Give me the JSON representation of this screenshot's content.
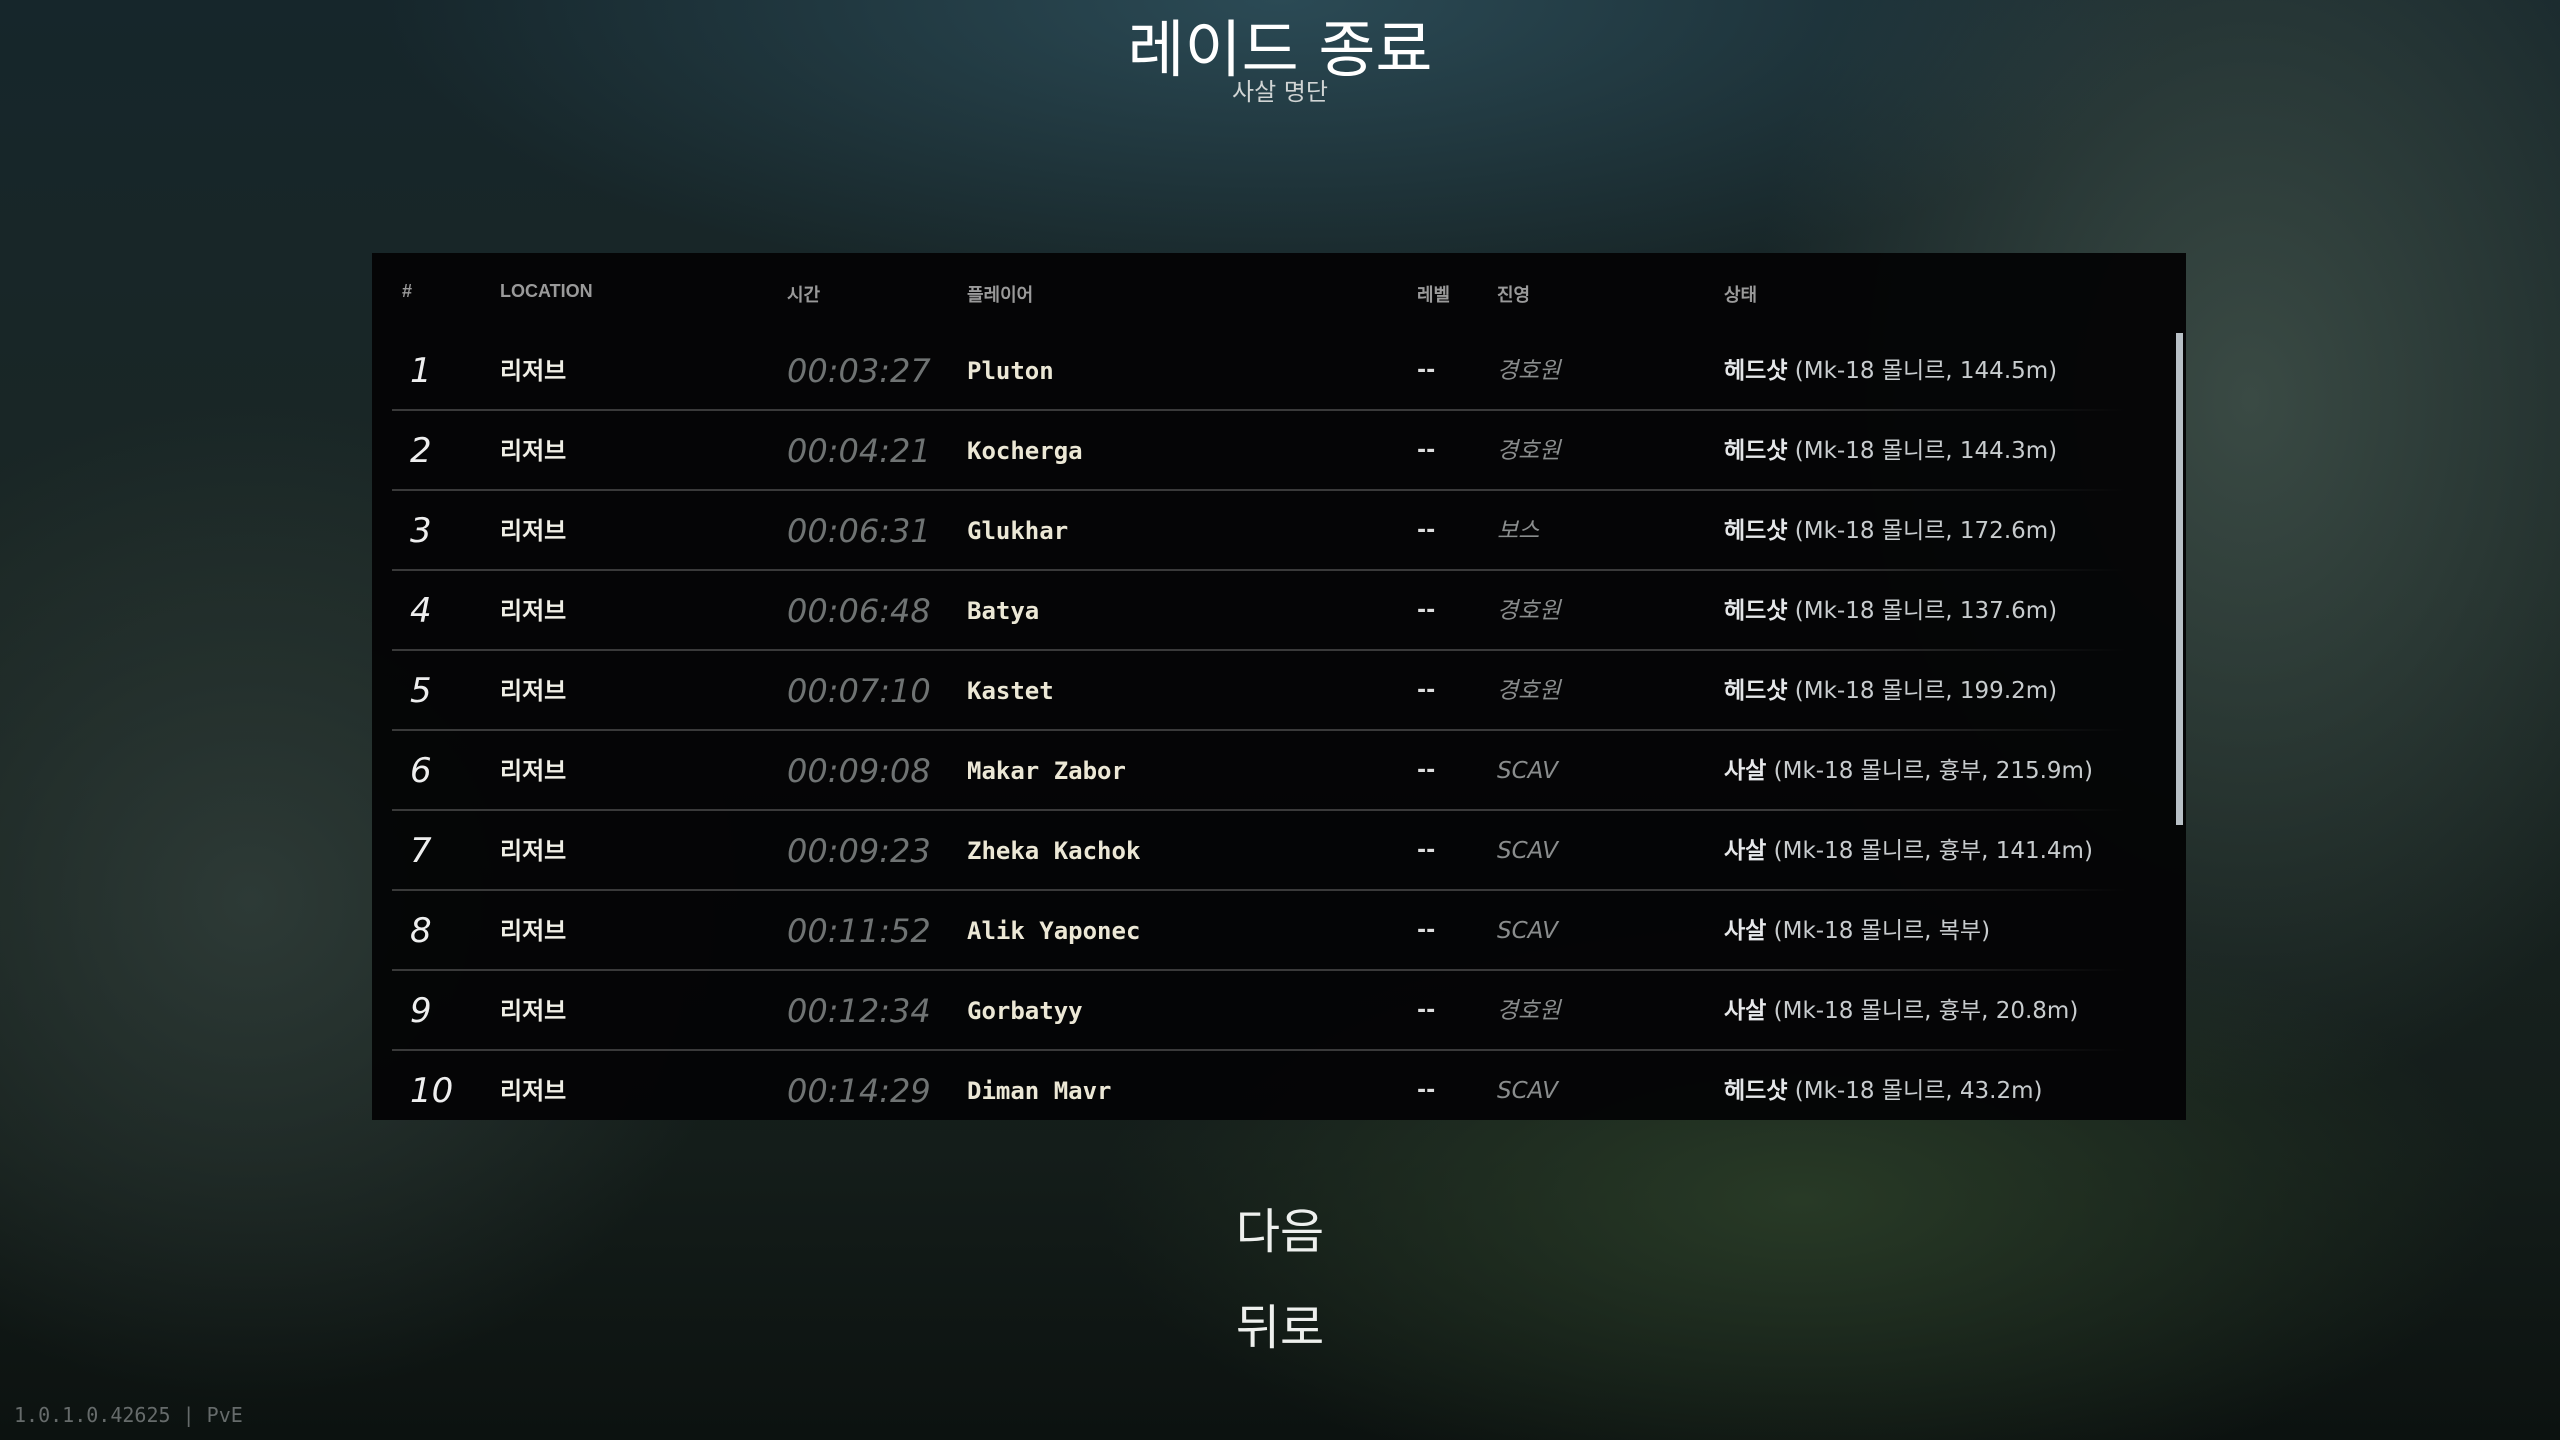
{
  "header": {
    "title": "레이드 종료",
    "subtitle": "사살 명단"
  },
  "table": {
    "columns": [
      "#",
      "LOCATION",
      "시간",
      "플레이어",
      "레벨",
      "진영",
      "상태"
    ],
    "rows": [
      {
        "num": "1",
        "location": "리저브",
        "time": "00:03:27",
        "player": "Pluton",
        "level": "--",
        "faction": "경호원",
        "status_type": "헤드샷",
        "status_detail": "(Mk-18 몰니르, 144.5m)"
      },
      {
        "num": "2",
        "location": "리저브",
        "time": "00:04:21",
        "player": "Kocherga",
        "level": "--",
        "faction": "경호원",
        "status_type": "헤드샷",
        "status_detail": "(Mk-18 몰니르, 144.3m)"
      },
      {
        "num": "3",
        "location": "리저브",
        "time": "00:06:31",
        "player": "Glukhar",
        "level": "--",
        "faction": "보스",
        "status_type": "헤드샷",
        "status_detail": "(Mk-18 몰니르, 172.6m)"
      },
      {
        "num": "4",
        "location": "리저브",
        "time": "00:06:48",
        "player": "Batya",
        "level": "--",
        "faction": "경호원",
        "status_type": "헤드샷",
        "status_detail": "(Mk-18 몰니르, 137.6m)"
      },
      {
        "num": "5",
        "location": "리저브",
        "time": "00:07:10",
        "player": "Kastet",
        "level": "--",
        "faction": "경호원",
        "status_type": "헤드샷",
        "status_detail": "(Mk-18 몰니르, 199.2m)"
      },
      {
        "num": "6",
        "location": "리저브",
        "time": "00:09:08",
        "player": "Makar Zabor",
        "level": "--",
        "faction": "SCAV",
        "status_type": "사살",
        "status_detail": "(Mk-18 몰니르, 흉부, 215.9m)"
      },
      {
        "num": "7",
        "location": "리저브",
        "time": "00:09:23",
        "player": "Zheka Kachok",
        "level": "--",
        "faction": "SCAV",
        "status_type": "사살",
        "status_detail": "(Mk-18 몰니르, 흉부, 141.4m)"
      },
      {
        "num": "8",
        "location": "리저브",
        "time": "00:11:52",
        "player": "Alik Yaponec",
        "level": "--",
        "faction": "SCAV",
        "status_type": "사살",
        "status_detail": "(Mk-18 몰니르, 복부)"
      },
      {
        "num": "9",
        "location": "리저브",
        "time": "00:12:34",
        "player": "Gorbatyy",
        "level": "--",
        "faction": "경호원",
        "status_type": "사살",
        "status_detail": "(Mk-18 몰니르, 흉부, 20.8m)"
      },
      {
        "num": "10",
        "location": "리저브",
        "time": "00:14:29",
        "player": "Diman Mavr",
        "level": "--",
        "faction": "SCAV",
        "status_type": "헤드샷",
        "status_detail": "(Mk-18 몰니르, 43.2m)"
      }
    ]
  },
  "buttons": {
    "next": "다음",
    "back": "뒤로"
  },
  "footer": {
    "version": "1.0.1.0.42625 | PvE"
  }
}
